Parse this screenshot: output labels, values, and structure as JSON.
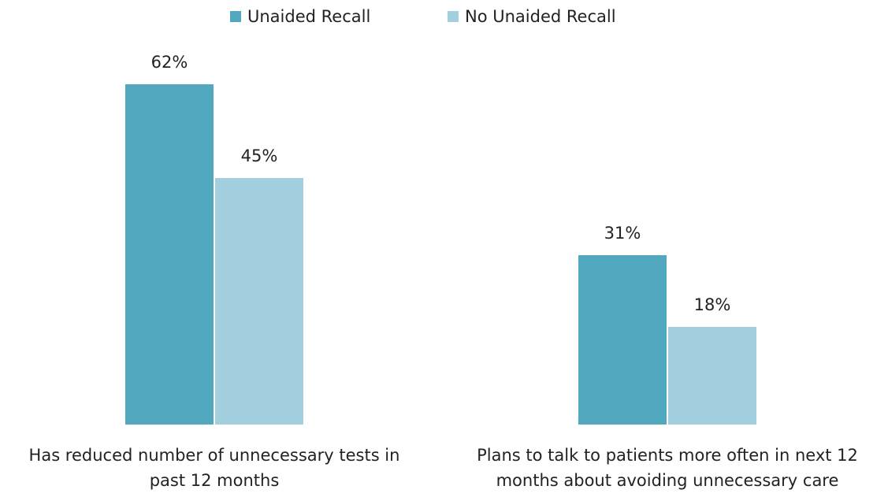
{
  "chart_data": {
    "type": "bar",
    "categories": [
      "Has reduced number of unnecessary tests in past 12 months",
      "Plans to talk to patients more often in next 12 months about avoiding unnecessary care"
    ],
    "series": [
      {
        "name": "Unaided Recall",
        "color": "#52a8be",
        "values": [
          62,
          31
        ],
        "value_labels": [
          "62%",
          "31%"
        ]
      },
      {
        "name": "No Unaided Recall",
        "color": "#a3d0de",
        "values": [
          45,
          18
        ],
        "value_labels": [
          "45%",
          "18%"
        ]
      }
    ],
    "legend": "top"
  }
}
